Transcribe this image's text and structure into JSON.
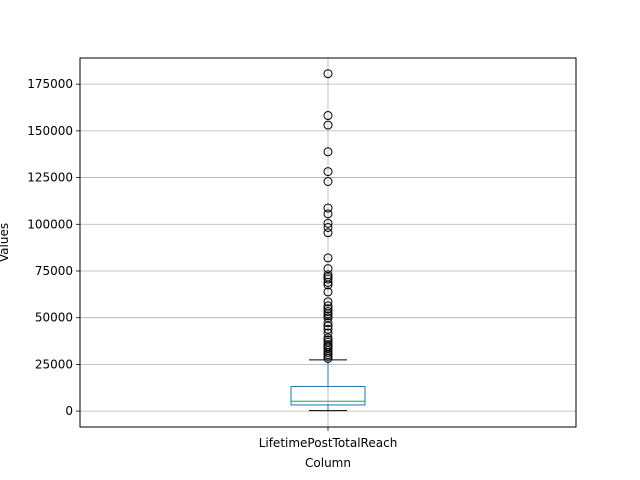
{
  "chart_data": {
    "type": "box",
    "title": "",
    "xlabel": "Column",
    "ylabel": "Values",
    "categories": [
      "LifetimePostTotalReach"
    ],
    "ylim": [
      -8500,
      189000
    ],
    "yticks": [
      0,
      25000,
      50000,
      75000,
      100000,
      125000,
      150000,
      175000
    ],
    "ytick_labels": [
      "0",
      "25000",
      "50000",
      "75000",
      "100000",
      "125000",
      "150000",
      "175000"
    ],
    "grid": true,
    "colors": {
      "box": "#1f77b4",
      "median": "#2ca02c",
      "whisker": "#1f77b4",
      "cap": "#000000",
      "flier": "#000000",
      "grid": "#b0b0b0"
    },
    "box": {
      "whisker_low": 240,
      "q1": 3300,
      "median": 5300,
      "q3": 13200,
      "whisker_high": 27400
    },
    "outliers": [
      180600,
      158200,
      153100,
      138800,
      128200,
      122900,
      108700,
      105600,
      100500,
      98300,
      95500,
      82000,
      76300,
      73000,
      71800,
      70700,
      68900,
      67500,
      63800,
      58500,
      56300,
      54800,
      53300,
      52100,
      51000,
      49900,
      47300,
      45500,
      43800,
      41800,
      39200,
      38100,
      36900,
      35600,
      34700,
      33800,
      32500,
      31400,
      30300,
      29300,
      28200
    ]
  }
}
